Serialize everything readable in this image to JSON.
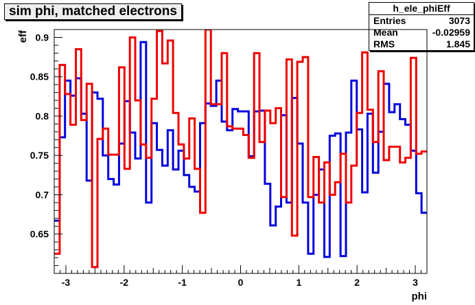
{
  "chart_data": {
    "type": "line",
    "title": "sim phi, matched electrons",
    "xlabel": "phi",
    "ylabel": "eff",
    "xlim": [
      -3.2,
      3.2
    ],
    "ylim": [
      0.6,
      0.91
    ],
    "x_ticks": [
      "-3",
      "-2",
      "-1",
      "0",
      "1",
      "2",
      "3"
    ],
    "y_ticks": [
      "0.65",
      "0.7",
      "0.75",
      "0.8",
      "0.85",
      "0.9"
    ],
    "grid": false,
    "legend": "none",
    "stats_box": {
      "name": "h_ele_phiEff",
      "rows": [
        {
          "label": "Entries",
          "value": "3073"
        },
        {
          "label": "Mean",
          "value": "-0.02959"
        },
        {
          "label": "RMS",
          "value": "1.845"
        }
      ]
    },
    "series": [
      {
        "color": "#0000dd",
        "values": [
          0.667,
          0.773,
          0.845,
          0.826,
          0.848,
          0.803,
          0.718,
          0.83,
          0.822,
          0.75,
          0.72,
          0.713,
          0.765,
          0.819,
          0.779,
          0.746,
          0.894,
          0.69,
          0.791,
          0.757,
          0.737,
          0.782,
          0.732,
          0.756,
          0.725,
          0.71,
          0.704,
          0.791,
          0.816,
          0.813,
          0.845,
          0.793,
          0.782,
          0.809,
          0.806,
          0.806,
          0.749,
          0.806,
          0.807,
          0.714,
          0.661,
          0.685,
          0.801,
          0.69,
          0.823,
          0.765,
          0.69,
          0.625,
          0.7,
          0.732,
          0.621,
          0.775,
          0.778,
          0.622,
          0.779,
          0.845,
          0.783,
          0.703,
          0.803,
          0.728,
          0.78,
          0.841,
          0.805,
          0.815,
          0.796,
          0.789,
          0.756,
          0.702,
          0.677
        ]
      },
      {
        "color": "#ee0000",
        "values": [
          0.625,
          0.865,
          0.828,
          0.789,
          0.885,
          0.795,
          0.841,
          0.608,
          0.771,
          0.784,
          0.751,
          0.751,
          0.862,
          0.733,
          0.9,
          0.82,
          0.764,
          0.747,
          0.822,
          0.908,
          0.867,
          0.896,
          0.804,
          0.764,
          0.746,
          0.797,
          0.733,
          0.677,
          0.913,
          0.815,
          0.815,
          0.88,
          0.787,
          0.784,
          0.784,
          0.776,
          0.747,
          0.88,
          0.767,
          0.807,
          0.791,
          0.81,
          0.697,
          0.872,
          0.648,
          0.869,
          0.875,
          0.697,
          0.748,
          0.69,
          0.741,
          0.7,
          0.716,
          0.752,
          0.69,
          0.737,
          0.804,
          0.881,
          0.808,
          0.767,
          0.857,
          0.744,
          0.761,
          0.761,
          0.741,
          0.747,
          0.874,
          0.752,
          0.755
        ]
      }
    ]
  }
}
